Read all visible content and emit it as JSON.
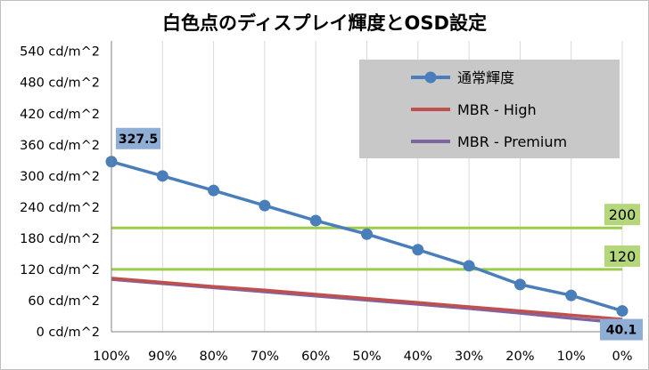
{
  "chart_data": {
    "type": "line",
    "title": "白色点のディスプレイ輝度とOSD設定",
    "categories": [
      "100%",
      "90%",
      "80%",
      "70%",
      "60%",
      "50%",
      "40%",
      "30%",
      "20%",
      "10%",
      "0%"
    ],
    "yticks": [
      "0 cd/m^2",
      "60 cd/m^2",
      "120 cd/m^2",
      "180 cd/m^2",
      "240 cd/m^2",
      "300 cd/m^2",
      "360 cd/m^2",
      "420 cd/m^2",
      "480 cd/m^2",
      "540 cd/m^2"
    ],
    "ylim": [
      0,
      560
    ],
    "grid": "vertical",
    "series": [
      {
        "name": "通常輝度",
        "color": "#4a7ebb",
        "markers": true,
        "values": [
          327.5,
          300,
          272,
          243,
          214,
          188,
          158,
          127,
          91,
          70,
          40.1
        ]
      },
      {
        "name": "MBR - High",
        "color": "#c0504d",
        "markers": false,
        "values": [
          103,
          95,
          87,
          80,
          72,
          64,
          56,
          48,
          40,
          32,
          24
        ]
      },
      {
        "name": "MBR - Premium",
        "color": "#8064a2",
        "markers": false,
        "values": [
          101,
          93,
          85,
          77,
          69,
          61,
          53,
          45,
          36,
          26,
          17
        ]
      }
    ],
    "reference_lines": [
      {
        "value": 200,
        "label": "200",
        "color": "#9bcc4a",
        "label_bg": "#b3d77a"
      },
      {
        "value": 120,
        "label": "120",
        "color": "#9bcc4a",
        "label_bg": "#b3d77a"
      }
    ],
    "data_labels": [
      {
        "series": 0,
        "index": 0,
        "text": "327.5",
        "bg": "#8eaed6"
      },
      {
        "series": 0,
        "index": 10,
        "text": "40.1",
        "bg": "#8eaed6"
      }
    ],
    "legend": {
      "placement": "top-right",
      "bg": "#c8c8c8"
    }
  }
}
